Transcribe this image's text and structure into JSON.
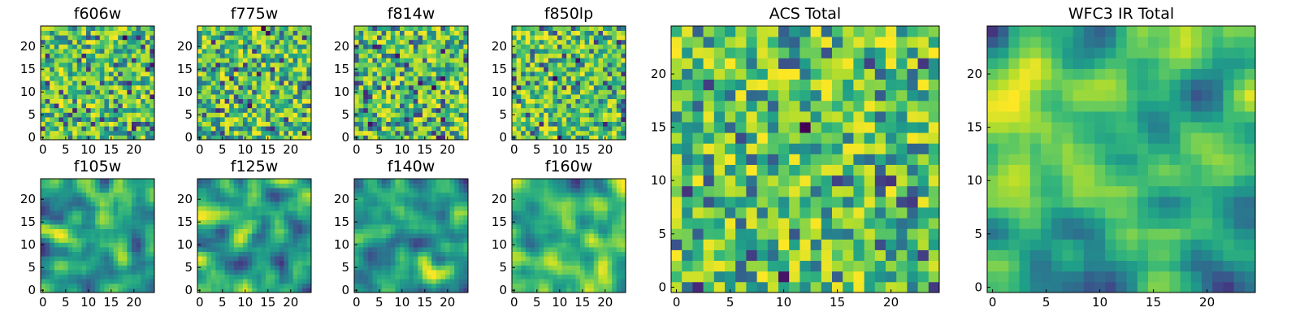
{
  "figure": "Multi-band heatmap cutouts",
  "chart_data": [
    {
      "type": "heatmap",
      "title": "f606w",
      "grid_size": 25,
      "colormap": "viridis",
      "xticks": [
        0,
        5,
        10,
        15,
        20
      ],
      "yticks": [
        0,
        5,
        10,
        15,
        20
      ],
      "xlim": [
        -0.5,
        24.5
      ],
      "ylim": [
        -0.5,
        24.5
      ],
      "seed": 606,
      "texture": "noisy"
    },
    {
      "type": "heatmap",
      "title": "f775w",
      "grid_size": 25,
      "colormap": "viridis",
      "xticks": [
        0,
        5,
        10,
        15,
        20
      ],
      "yticks": [
        0,
        5,
        10,
        15,
        20
      ],
      "xlim": [
        -0.5,
        24.5
      ],
      "ylim": [
        -0.5,
        24.5
      ],
      "seed": 775,
      "texture": "noisy"
    },
    {
      "type": "heatmap",
      "title": "f814w",
      "grid_size": 25,
      "colormap": "viridis",
      "xticks": [
        0,
        5,
        10,
        15,
        20
      ],
      "yticks": [
        0,
        5,
        10,
        15,
        20
      ],
      "xlim": [
        -0.5,
        24.5
      ],
      "ylim": [
        -0.5,
        24.5
      ],
      "seed": 814,
      "texture": "noisy"
    },
    {
      "type": "heatmap",
      "title": "f850lp",
      "grid_size": 25,
      "colormap": "viridis",
      "xticks": [
        0,
        5,
        10,
        15,
        20
      ],
      "yticks": [
        0,
        5,
        10,
        15,
        20
      ],
      "xlim": [
        -0.5,
        24.5
      ],
      "ylim": [
        -0.5,
        24.5
      ],
      "seed": 850,
      "texture": "noisy"
    },
    {
      "type": "heatmap",
      "title": "f105w",
      "grid_size": 25,
      "colormap": "viridis",
      "xticks": [
        0,
        5,
        10,
        15,
        20
      ],
      "yticks": [
        0,
        5,
        10,
        15,
        20
      ],
      "xlim": [
        -0.5,
        24.5
      ],
      "ylim": [
        -0.5,
        24.5
      ],
      "seed": 105,
      "texture": "smooth"
    },
    {
      "type": "heatmap",
      "title": "f125w",
      "grid_size": 25,
      "colormap": "viridis",
      "xticks": [
        0,
        5,
        10,
        15,
        20
      ],
      "yticks": [
        0,
        5,
        10,
        15,
        20
      ],
      "xlim": [
        -0.5,
        24.5
      ],
      "ylim": [
        -0.5,
        24.5
      ],
      "seed": 125,
      "texture": "smooth"
    },
    {
      "type": "heatmap",
      "title": "f140w",
      "grid_size": 25,
      "colormap": "viridis",
      "xticks": [
        0,
        5,
        10,
        15,
        20
      ],
      "yticks": [
        0,
        5,
        10,
        15,
        20
      ],
      "xlim": [
        -0.5,
        24.5
      ],
      "ylim": [
        -0.5,
        24.5
      ],
      "seed": 140,
      "texture": "smooth"
    },
    {
      "type": "heatmap",
      "title": "f160w",
      "grid_size": 25,
      "colormap": "viridis",
      "xticks": [
        0,
        5,
        10,
        15,
        20
      ],
      "yticks": [
        0,
        5,
        10,
        15,
        20
      ],
      "xlim": [
        -0.5,
        24.5
      ],
      "ylim": [
        -0.5,
        24.5
      ],
      "seed": 160,
      "texture": "smooth"
    },
    {
      "type": "heatmap",
      "title": "ACS Total",
      "grid_size": 25,
      "colormap": "viridis",
      "xticks": [
        0,
        5,
        10,
        15,
        20
      ],
      "yticks": [
        0,
        5,
        10,
        15,
        20
      ],
      "xlim": [
        -0.5,
        24.5
      ],
      "ylim": [
        -0.5,
        24.5
      ],
      "seed": 2001,
      "texture": "noisy"
    },
    {
      "type": "heatmap",
      "title": "WFC3 IR Total",
      "grid_size": 25,
      "colormap": "viridis",
      "xticks": [
        0,
        5,
        10,
        15,
        20
      ],
      "yticks": [
        0,
        5,
        10,
        15,
        20
      ],
      "xlim": [
        -0.5,
        24.5
      ],
      "ylim": [
        -0.5,
        24.5
      ],
      "seed": 3001,
      "texture": "smooth"
    }
  ]
}
